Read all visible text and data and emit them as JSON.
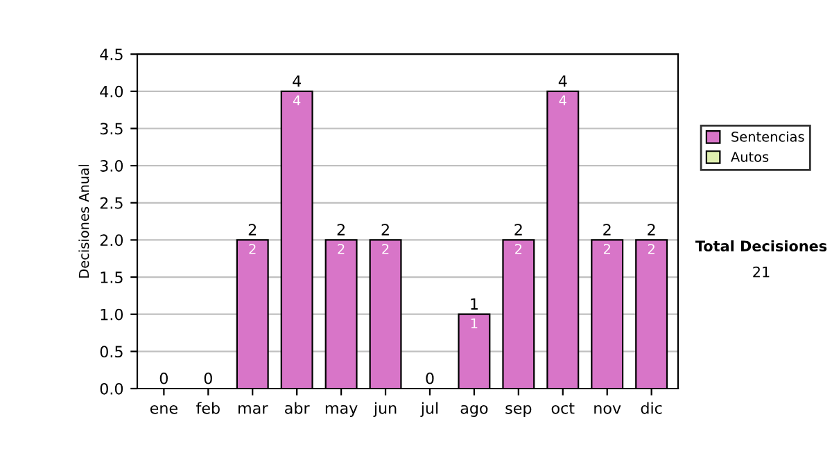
{
  "chart_data": {
    "type": "bar",
    "ylabel": "Decisiones Anual",
    "categories": [
      "ene",
      "feb",
      "mar",
      "abr",
      "may",
      "jun",
      "jul",
      "ago",
      "sep",
      "oct",
      "nov",
      "dic"
    ],
    "series": [
      {
        "name": "Sentencias",
        "color": "#d875c8",
        "values": [
          0,
          0,
          2,
          4,
          2,
          2,
          0,
          1,
          2,
          4,
          2,
          2
        ],
        "value_labels": [
          null,
          null,
          "2",
          "4",
          "2",
          "2",
          null,
          "1",
          "2",
          "4",
          "2",
          "2"
        ]
      },
      {
        "name": "Autos",
        "color": "#e0f0b0",
        "values": [
          0,
          0,
          0,
          0,
          0,
          0,
          0,
          0,
          0,
          0,
          0,
          0
        ]
      }
    ],
    "stacked": true,
    "totals": [
      "0",
      "0",
      "2",
      "4",
      "2",
      "2",
      "0",
      "1",
      "2",
      "4",
      "2",
      "2"
    ],
    "ylim": [
      0,
      4.5
    ],
    "yticks": [
      {
        "value": 0,
        "label": "0.0"
      },
      {
        "value": 0.5,
        "label": "0.5"
      },
      {
        "value": 1,
        "label": "1.0"
      },
      {
        "value": 1.5,
        "label": "1.5"
      },
      {
        "value": 2,
        "label": "2.0"
      },
      {
        "value": 2.5,
        "label": "2.5"
      },
      {
        "value": 3,
        "label": "3.0"
      },
      {
        "value": 3.5,
        "label": "3.5"
      },
      {
        "value": 4,
        "label": "4.0"
      },
      {
        "value": 4.5,
        "label": "4.5"
      }
    ],
    "grid": "y",
    "legend": "right",
    "annotations": [
      "Total Decisiones",
      "21"
    ]
  }
}
